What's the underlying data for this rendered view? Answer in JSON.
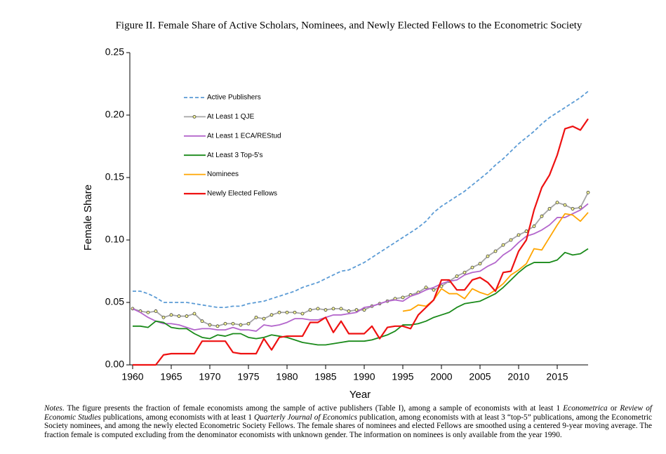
{
  "chart_data": {
    "type": "line",
    "title": "Figure II. Female Share of Active Scholars, Nominees, and Newly Elected Fellows to the Econometric Society",
    "x_label": "Year",
    "y_label": "Female Share",
    "x": [
      1960,
      1961,
      1962,
      1963,
      1964,
      1965,
      1966,
      1967,
      1968,
      1969,
      1970,
      1971,
      1972,
      1973,
      1974,
      1975,
      1976,
      1977,
      1978,
      1979,
      1980,
      1981,
      1982,
      1983,
      1984,
      1985,
      1986,
      1987,
      1988,
      1989,
      1990,
      1991,
      1992,
      1993,
      1994,
      1995,
      1996,
      1997,
      1998,
      1999,
      2000,
      2001,
      2002,
      2003,
      2004,
      2005,
      2006,
      2007,
      2008,
      2009,
      2010,
      2011,
      2012,
      2013,
      2014,
      2015,
      2016,
      2017,
      2018,
      2019
    ],
    "xlim": [
      1960,
      2019
    ],
    "xticks": [
      1960,
      1965,
      1970,
      1975,
      1980,
      1985,
      1990,
      1995,
      2000,
      2005,
      2010,
      2015
    ],
    "ylim": [
      0,
      0.25
    ],
    "yticks": [
      {
        "value": 0,
        "label": "0.00"
      },
      {
        "value": 0.05,
        "label": "0.05"
      },
      {
        "value": 0.1,
        "label": "0.10"
      },
      {
        "value": 0.15,
        "label": "0.15"
      },
      {
        "value": 0.2,
        "label": "0.20"
      },
      {
        "value": 0.25,
        "label": "0.25"
      }
    ],
    "legend": "upper left",
    "series": [
      {
        "name": "Active Publishers",
        "color": "#5b9bd5",
        "dash": true,
        "values": [
          0.059,
          0.059,
          0.057,
          0.054,
          0.05,
          0.05,
          0.05,
          0.05,
          0.049,
          0.048,
          0.047,
          0.046,
          0.046,
          0.047,
          0.047,
          0.049,
          0.05,
          0.051,
          0.053,
          0.055,
          0.057,
          0.059,
          0.062,
          0.064,
          0.066,
          0.069,
          0.072,
          0.075,
          0.076,
          0.079,
          0.082,
          0.086,
          0.09,
          0.094,
          0.098,
          0.102,
          0.106,
          0.11,
          0.115,
          0.122,
          0.127,
          0.131,
          0.135,
          0.139,
          0.144,
          0.149,
          0.154,
          0.16,
          0.165,
          0.171,
          0.177,
          0.182,
          0.187,
          0.193,
          0.198,
          0.202,
          0.206,
          0.21,
          0.214,
          0.219
        ]
      },
      {
        "name": "At Least 1 QJE",
        "color": "#a5a5a5",
        "marker": "circle",
        "marker_fill": "#ffff99",
        "marker_edge": "#333333",
        "values": [
          0.045,
          0.043,
          0.042,
          0.043,
          0.038,
          0.04,
          0.039,
          0.039,
          0.041,
          0.035,
          0.032,
          0.031,
          0.033,
          0.033,
          0.032,
          0.033,
          0.038,
          0.037,
          0.04,
          0.042,
          0.042,
          0.042,
          0.041,
          0.044,
          0.045,
          0.044,
          0.045,
          0.045,
          0.043,
          0.044,
          0.044,
          0.047,
          0.049,
          0.051,
          0.053,
          0.054,
          0.056,
          0.058,
          0.062,
          0.06,
          0.063,
          0.067,
          0.071,
          0.074,
          0.078,
          0.081,
          0.087,
          0.091,
          0.096,
          0.1,
          0.104,
          0.107,
          0.111,
          0.119,
          0.125,
          0.13,
          0.128,
          0.125,
          0.126,
          0.138
        ]
      },
      {
        "name": "At Least 1 ECA/REStud",
        "color": "#b366cc",
        "values": [
          0.045,
          0.042,
          0.038,
          0.035,
          0.033,
          0.033,
          0.032,
          0.03,
          0.028,
          0.029,
          0.029,
          0.028,
          0.028,
          0.03,
          0.028,
          0.028,
          0.027,
          0.032,
          0.031,
          0.032,
          0.034,
          0.037,
          0.037,
          0.036,
          0.036,
          0.038,
          0.04,
          0.04,
          0.041,
          0.042,
          0.046,
          0.047,
          0.049,
          0.051,
          0.052,
          0.051,
          0.055,
          0.057,
          0.06,
          0.062,
          0.065,
          0.067,
          0.068,
          0.072,
          0.074,
          0.075,
          0.079,
          0.082,
          0.088,
          0.092,
          0.098,
          0.103,
          0.105,
          0.108,
          0.112,
          0.118,
          0.118,
          0.121,
          0.124,
          0.129
        ]
      },
      {
        "name": "At Least 3 Top-5's",
        "color": "#1a8a1a",
        "values": [
          0.031,
          0.031,
          0.03,
          0.035,
          0.034,
          0.03,
          0.029,
          0.029,
          0.025,
          0.022,
          0.021,
          0.024,
          0.023,
          0.025,
          0.025,
          0.022,
          0.021,
          0.022,
          0.024,
          0.023,
          0.022,
          0.02,
          0.018,
          0.017,
          0.016,
          0.016,
          0.017,
          0.018,
          0.019,
          0.019,
          0.019,
          0.02,
          0.022,
          0.024,
          0.027,
          0.032,
          0.032,
          0.033,
          0.035,
          0.038,
          0.04,
          0.042,
          0.046,
          0.049,
          0.05,
          0.051,
          0.054,
          0.057,
          0.062,
          0.068,
          0.074,
          0.079,
          0.082,
          0.082,
          0.082,
          0.084,
          0.09,
          0.088,
          0.089,
          0.093
        ]
      },
      {
        "name": "Nominees",
        "color": "#ffa500",
        "values": [
          null,
          null,
          null,
          null,
          null,
          null,
          null,
          null,
          null,
          null,
          null,
          null,
          null,
          null,
          null,
          null,
          null,
          null,
          null,
          null,
          null,
          null,
          null,
          null,
          null,
          null,
          null,
          null,
          null,
          null,
          null,
          null,
          null,
          null,
          null,
          0.043,
          0.044,
          0.048,
          0.047,
          0.052,
          0.061,
          0.057,
          0.057,
          0.053,
          0.061,
          0.058,
          0.056,
          0.06,
          0.065,
          0.072,
          0.076,
          0.081,
          0.093,
          0.092,
          0.102,
          0.112,
          0.121,
          0.12,
          0.115,
          0.122
        ]
      },
      {
        "name": "Newly Elected Fellows",
        "color": "#ee1111",
        "width": 2.2,
        "values": [
          0,
          0,
          0,
          0,
          0.008,
          0.009,
          0.009,
          0.009,
          0.009,
          0.019,
          0.019,
          0.019,
          0.019,
          0.01,
          0.009,
          0.009,
          0.009,
          0.021,
          0.012,
          0.022,
          0.023,
          0.023,
          0.023,
          0.034,
          0.034,
          0.038,
          0.026,
          0.035,
          0.025,
          0.025,
          0.025,
          0.031,
          0.021,
          0.03,
          0.031,
          0.031,
          0.029,
          0.04,
          0.046,
          0.052,
          0.068,
          0.068,
          0.06,
          0.06,
          0.068,
          0.07,
          0.066,
          0.059,
          0.074,
          0.075,
          0.091,
          0.1,
          0.124,
          0.142,
          0.152,
          0.168,
          0.189,
          0.191,
          0.188,
          0.197
        ]
      }
    ],
    "notes": [
      {
        "text": "Notes",
        "italic": true
      },
      {
        "text": ". The figure presents the fraction of female economists among the sample of active publishers (Table I), among a sample of economists with at least 1 "
      },
      {
        "text": "Econometrica",
        "italic": true
      },
      {
        "text": " or "
      },
      {
        "text": "Review of Economic Studies",
        "italic": true
      },
      {
        "text": " publications, among economists with at least 1 "
      },
      {
        "text": "Quarterly Journal of Economics",
        "italic": true
      },
      {
        "text": " publication, among economists with at least 3 “top-5” publications, among the Econometric Society nominees, and among the newly elected Econometric Society Fellows. The female shares of nominees and elected Fellows are smoothed using a centered 9-year moving average. The fraction female is computed excluding from the denominator economists with unknown gender. The information on nominees is only available from the year 1990."
      }
    ]
  }
}
